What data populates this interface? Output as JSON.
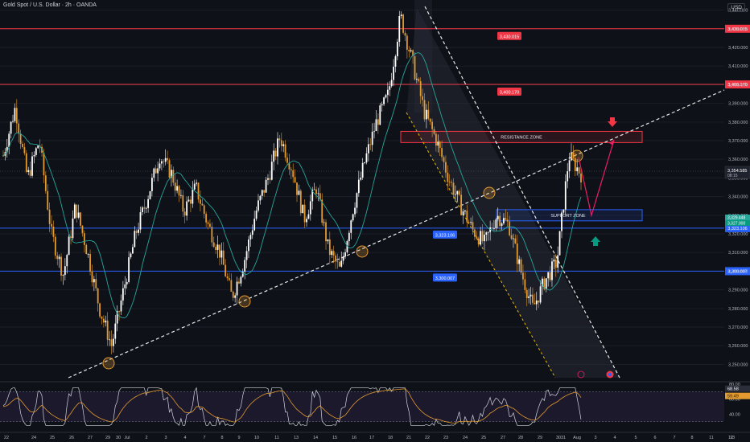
{
  "header": {
    "title": "Gold Spot / U.S. Dollar · 2h · OANDA",
    "currency": "USD"
  },
  "chart_data": {
    "type": "candlestick",
    "title": "Gold Spot / U.S. Dollar · 2h · OANDA",
    "ylim": [
      3242,
      3442
    ],
    "y_ticks": [
      "3,440.000",
      "3,430.000",
      "3,420.000",
      "3,410.000",
      "3,400.000",
      "3,390.000",
      "3,380.000",
      "3,370.000",
      "3,360.000",
      "3,350.000",
      "3,340.000",
      "3,330.000",
      "3,320.000",
      "3,310.000",
      "3,300.000",
      "3,290.000",
      "3,280.000",
      "3,270.000",
      "3,260.000",
      "3,250.000"
    ],
    "x_ticks": [
      "22",
      "24",
      "25",
      "26",
      "27",
      "29",
      "30",
      "Jul",
      "2",
      "3",
      "4",
      "7",
      "8",
      "9",
      "10",
      "11",
      "13",
      "14",
      "15",
      "16",
      "17",
      "18",
      "21",
      "22",
      "23",
      "24",
      "25",
      "27",
      "28",
      "29",
      "30",
      "31",
      "Aug",
      "3",
      "4",
      "5",
      "6",
      "7",
      "8",
      "11",
      "12",
      "13"
    ],
    "swing_path": [
      3362,
      3388,
      3350,
      3370,
      3320,
      3298,
      3335,
      3310,
      3280,
      3260,
      3290,
      3320,
      3340,
      3362,
      3352,
      3332,
      3345,
      3325,
      3310,
      3286,
      3305,
      3332,
      3350,
      3372,
      3355,
      3328,
      3345,
      3312,
      3300,
      3332,
      3358,
      3380,
      3395,
      3437,
      3412,
      3385,
      3370,
      3350,
      3335,
      3322,
      3315,
      3330,
      3325,
      3300,
      3280,
      3295,
      3305,
      3362,
      3352
    ],
    "horizontal_levels": [
      {
        "value": 3430.015,
        "label": "3,430.015",
        "color": "#f23645"
      },
      {
        "value": 3400.17,
        "label": "3,400.170",
        "color": "#f23645"
      },
      {
        "value": 3323.106,
        "label": "3,323.106",
        "color": "#2962ff"
      },
      {
        "value": 3300.007,
        "label": "3,300.007",
        "color": "#2962ff"
      }
    ],
    "zones": [
      {
        "name": "RESISTANCE ZONE",
        "top": 3375,
        "bottom": 3369,
        "color": "#f23645"
      },
      {
        "name": "SUPPORT ZONE",
        "top": 3333,
        "bottom": 3327,
        "color": "#2962ff"
      }
    ],
    "current_price": {
      "value": "3,354.585",
      "countdown": "08:15"
    },
    "ma_labels": [
      "3,329.448",
      "3,327.000"
    ],
    "projection": {
      "target_high": 3372,
      "pullback": 3330
    },
    "rsi": {
      "ylim": [
        20,
        80
      ],
      "ticks": [
        "80.00",
        "60.00",
        "40.00"
      ],
      "values": {
        "rsi": "68.58",
        "signal": "59.49"
      }
    }
  }
}
